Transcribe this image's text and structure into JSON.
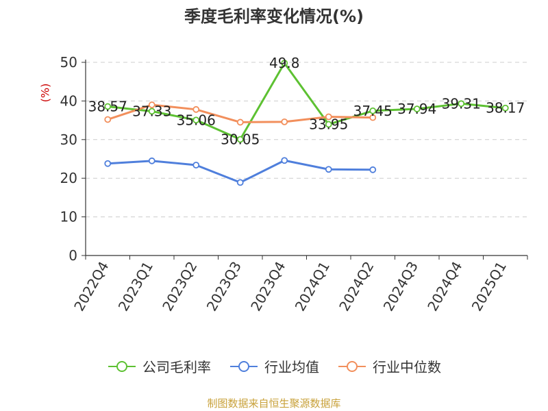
{
  "colors": {
    "company": "#5dc132",
    "industry_avg": "#4f7fdc",
    "industry_median": "#f28f5c",
    "grid": "#cccccc",
    "axis": "#333333",
    "source": "#c8a13a"
  },
  "source_text": "制图数据来自恒生聚源数据库",
  "chart_data": {
    "type": "line",
    "title": "季度毛利率变化情况(%)",
    "ylabel": "(%)",
    "xlabel": "",
    "ylim": [
      0,
      50
    ],
    "yticks": [
      0,
      10,
      20,
      30,
      40,
      50
    ],
    "grid": true,
    "legend_position": "bottom",
    "categories": [
      "2022Q4",
      "2023Q1",
      "2023Q2",
      "2023Q3",
      "2023Q4",
      "2024Q1",
      "2024Q2",
      "2024Q3",
      "2024Q4",
      "2025Q1"
    ],
    "series": [
      {
        "name": "公司毛利率",
        "color": "#5dc132",
        "show_labels": true,
        "values": [
          38.57,
          37.33,
          35.06,
          30.05,
          49.8,
          33.95,
          37.45,
          37.94,
          39.31,
          38.17
        ],
        "labels": [
          "38.57",
          "37.33",
          "35.06",
          "30.05",
          "49.8",
          "33.95",
          "37.45",
          "37.94",
          "39.31",
          "38.17"
        ]
      },
      {
        "name": "行业均值",
        "color": "#4f7fdc",
        "show_labels": false,
        "values": [
          23.8,
          24.5,
          23.4,
          18.9,
          24.6,
          22.3,
          22.2,
          null,
          null,
          null
        ]
      },
      {
        "name": "行业中位数",
        "color": "#f28f5c",
        "show_labels": false,
        "values": [
          35.2,
          39.0,
          37.8,
          34.5,
          34.6,
          35.9,
          35.7,
          null,
          null,
          null
        ]
      }
    ]
  }
}
